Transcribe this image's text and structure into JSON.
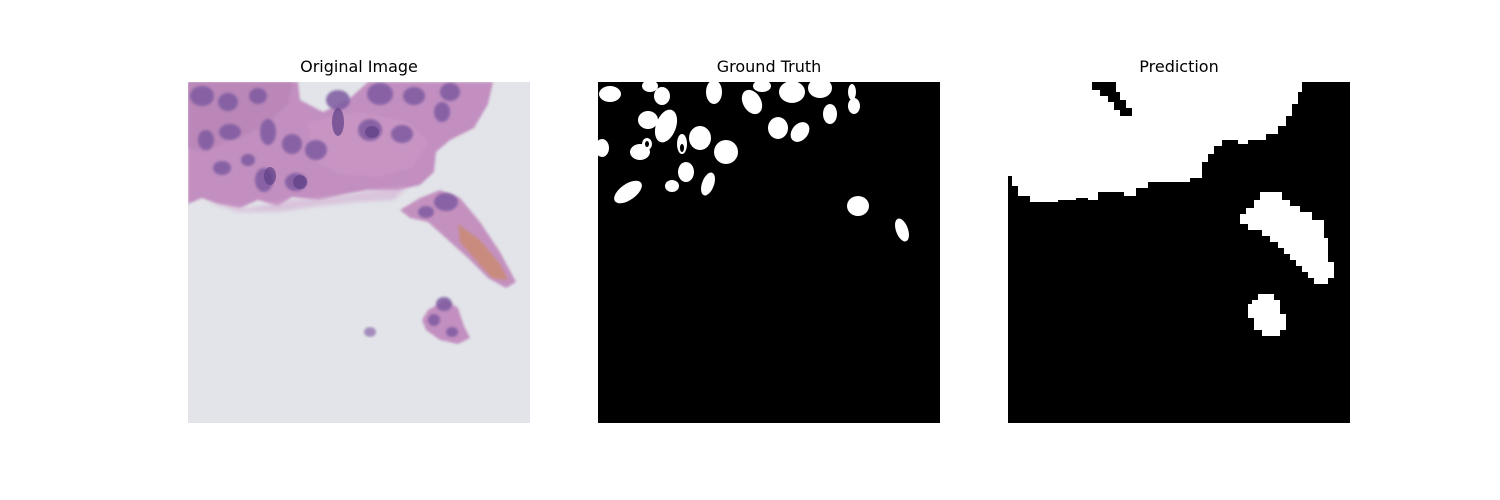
{
  "figure": {
    "panels": [
      {
        "title": "Original Image",
        "content": "hematoxylin-and-eosin-stained-tissue-patch"
      },
      {
        "title": "Ground Truth",
        "content": "binary-nucleus-mask"
      },
      {
        "title": "Prediction",
        "content": "binary-predicted-mask"
      }
    ]
  },
  "colors": {
    "background": "#ffffff",
    "mask_foreground": "#ffffff",
    "mask_background": "#000000",
    "slide_background": "#e2e4e9",
    "tissue_pink": "#c28fc0",
    "nucleus_purple": "#7d5aa0",
    "eosin_orange": "#c98a6e"
  }
}
